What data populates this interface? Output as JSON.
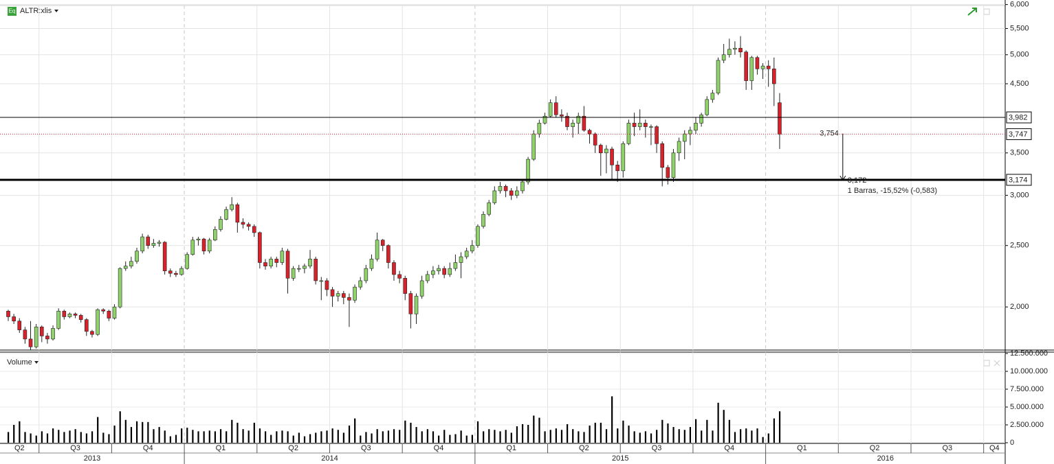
{
  "chart_data": [
    {
      "type": "candlestick",
      "title": "ALTR:xlis",
      "icon": "Eq",
      "log_scale": true,
      "grid": true,
      "up_color": "#8fd16a",
      "down_color": "#d8222b",
      "ylim": [
        1.71,
        6.1
      ],
      "yticks": [
        {
          "value": 2,
          "label": "2,000"
        },
        {
          "value": 2.5,
          "label": "2,500"
        },
        {
          "value": 3,
          "label": "3,000"
        },
        {
          "value": 3.5,
          "label": "3,500"
        },
        {
          "value": 4.5,
          "label": "4,500"
        },
        {
          "value": 5,
          "label": "5,000"
        },
        {
          "value": 5.5,
          "label": "5,500"
        },
        {
          "value": 6,
          "label": "6,000"
        }
      ],
      "open": [
        1.97,
        1.93,
        1.9,
        1.84,
        1.78,
        1.73,
        1.86,
        1.8,
        1.78,
        1.85,
        1.97,
        1.93,
        1.95,
        1.94,
        1.91,
        1.83,
        1.81,
        1.98,
        1.97,
        1.92,
        2.0,
        2.3,
        2.32,
        2.36,
        2.45,
        2.58,
        2.5,
        2.52,
        2.53,
        2.28,
        2.26,
        2.25,
        2.3,
        2.42,
        2.55,
        2.56,
        2.45,
        2.55,
        2.65,
        2.75,
        2.85,
        2.9,
        2.72,
        2.7,
        2.68,
        2.62,
        2.35,
        2.32,
        2.38,
        2.35,
        2.45,
        2.22,
        2.3,
        2.3,
        2.32,
        2.38,
        2.2,
        2.2,
        2.13,
        2.08,
        2.1,
        2.07,
        2.05,
        2.15,
        2.2,
        2.3,
        2.38,
        2.55,
        2.5,
        2.35,
        2.25,
        2.22,
        2.1,
        1.95,
        2.08,
        2.2,
        2.25,
        2.28,
        2.3,
        2.25,
        2.3,
        2.35,
        2.4,
        2.45,
        2.5,
        2.68,
        2.8,
        2.92,
        3.05,
        3.1,
        3.05,
        3.0,
        3.05,
        3.15,
        3.42,
        3.75,
        3.9,
        4.0,
        4.2,
        4.02,
        4.0,
        3.85,
        3.9,
        4.0,
        3.8,
        3.75,
        3.6,
        3.5,
        3.55,
        3.35,
        3.28,
        3.62,
        3.9,
        3.85,
        3.9,
        3.85,
        3.85,
        3.62,
        3.32,
        3.2,
        3.5,
        3.65,
        3.75,
        3.8,
        3.9,
        4.02,
        4.25,
        4.35,
        4.9,
        5.0,
        5.1,
        5.12,
        5.05,
        4.55,
        4.95,
        4.75,
        4.8,
        4.75,
        4.2
      ],
      "high": [
        1.98,
        1.95,
        1.92,
        1.86,
        1.9,
        1.88,
        1.87,
        1.82,
        1.87,
        1.99,
        1.98,
        1.96,
        1.96,
        1.95,
        1.92,
        1.84,
        1.99,
        1.99,
        1.98,
        2.02,
        2.31,
        2.36,
        2.4,
        2.48,
        2.61,
        2.6,
        2.56,
        2.55,
        2.54,
        2.3,
        2.28,
        2.32,
        2.44,
        2.58,
        2.58,
        2.57,
        2.57,
        2.68,
        2.78,
        2.88,
        2.98,
        2.92,
        2.76,
        2.72,
        2.7,
        2.63,
        2.38,
        2.4,
        2.4,
        2.48,
        2.47,
        2.32,
        2.33,
        2.34,
        2.46,
        2.4,
        2.23,
        2.22,
        2.15,
        2.12,
        2.12,
        2.1,
        2.17,
        2.23,
        2.33,
        2.42,
        2.62,
        2.56,
        2.51,
        2.37,
        2.28,
        2.24,
        2.12,
        2.1,
        2.24,
        2.28,
        2.32,
        2.33,
        2.32,
        2.35,
        2.42,
        2.44,
        2.48,
        2.55,
        2.7,
        2.83,
        2.95,
        3.1,
        3.15,
        3.12,
        3.08,
        3.1,
        3.18,
        3.45,
        3.8,
        3.95,
        4.05,
        4.25,
        4.3,
        4.1,
        4.05,
        3.95,
        4.05,
        4.15,
        3.82,
        3.77,
        3.62,
        3.6,
        3.58,
        3.4,
        3.65,
        3.95,
        4.05,
        4.1,
        3.95,
        3.88,
        3.87,
        3.65,
        3.35,
        3.55,
        3.7,
        3.8,
        3.85,
        3.98,
        4.05,
        4.3,
        4.4,
        4.95,
        5.2,
        5.3,
        5.25,
        5.35,
        5.08,
        4.98,
        4.98,
        4.85,
        4.9,
        4.95,
        4.35
      ],
      "low": [
        1.9,
        1.88,
        1.82,
        1.75,
        1.71,
        1.72,
        1.76,
        1.75,
        1.77,
        1.84,
        1.91,
        1.92,
        1.92,
        1.89,
        1.8,
        1.79,
        1.8,
        1.95,
        1.9,
        1.91,
        1.99,
        2.28,
        2.3,
        2.34,
        2.43,
        2.47,
        2.48,
        2.49,
        2.25,
        2.23,
        2.23,
        2.24,
        2.29,
        2.41,
        2.5,
        2.42,
        2.43,
        2.54,
        2.63,
        2.74,
        2.83,
        2.62,
        2.66,
        2.64,
        2.58,
        2.3,
        2.29,
        2.3,
        2.31,
        2.33,
        2.1,
        2.2,
        2.27,
        2.26,
        2.3,
        2.17,
        2.05,
        2.08,
        2.0,
        2.04,
        2.02,
        1.86,
        2.03,
        2.13,
        2.18,
        2.28,
        2.36,
        2.45,
        2.3,
        2.2,
        2.18,
        2.05,
        1.85,
        1.88,
        2.06,
        2.18,
        2.22,
        2.25,
        2.22,
        2.23,
        2.28,
        2.22,
        2.38,
        2.43,
        2.48,
        2.66,
        2.78,
        2.9,
        3.02,
        2.98,
        2.95,
        2.97,
        3.02,
        3.12,
        3.4,
        3.7,
        3.88,
        3.98,
        3.98,
        3.92,
        3.8,
        3.7,
        3.75,
        3.78,
        3.62,
        3.5,
        3.22,
        3.25,
        3.18,
        3.15,
        3.2,
        3.6,
        3.72,
        3.8,
        3.7,
        3.6,
        3.5,
        3.1,
        3.12,
        3.15,
        3.4,
        3.42,
        3.6,
        3.75,
        3.85,
        4.0,
        4.2,
        4.32,
        4.85,
        4.95,
        5.0,
        4.95,
        4.4,
        4.4,
        4.65,
        4.58,
        4.45,
        4.15,
        3.55
      ],
      "close": [
        1.93,
        1.9,
        1.84,
        1.78,
        1.73,
        1.86,
        1.8,
        1.78,
        1.85,
        1.97,
        1.93,
        1.95,
        1.94,
        1.91,
        1.83,
        1.81,
        1.98,
        1.97,
        1.92,
        2.0,
        2.3,
        2.32,
        2.36,
        2.45,
        2.58,
        2.5,
        2.52,
        2.53,
        2.28,
        2.26,
        2.25,
        2.3,
        2.42,
        2.55,
        2.56,
        2.45,
        2.55,
        2.65,
        2.75,
        2.85,
        2.9,
        2.72,
        2.7,
        2.68,
        2.62,
        2.35,
        2.32,
        2.38,
        2.35,
        2.45,
        2.22,
        2.3,
        2.3,
        2.32,
        2.38,
        2.2,
        2.2,
        2.13,
        2.08,
        2.1,
        2.07,
        2.05,
        2.15,
        2.2,
        2.3,
        2.38,
        2.55,
        2.5,
        2.35,
        2.25,
        2.22,
        2.1,
        1.95,
        2.08,
        2.2,
        2.25,
        2.28,
        2.3,
        2.25,
        2.3,
        2.35,
        2.4,
        2.45,
        2.5,
        2.68,
        2.8,
        2.92,
        3.05,
        3.1,
        3.05,
        3.0,
        3.05,
        3.15,
        3.42,
        3.75,
        3.9,
        4.0,
        4.2,
        4.02,
        4.0,
        3.85,
        3.9,
        4.0,
        3.8,
        3.75,
        3.6,
        3.5,
        3.55,
        3.35,
        3.28,
        3.62,
        3.9,
        3.85,
        3.9,
        3.85,
        3.85,
        3.62,
        3.32,
        3.2,
        3.5,
        3.65,
        3.75,
        3.8,
        3.9,
        4.02,
        4.25,
        4.35,
        4.9,
        5.0,
        5.1,
        5.12,
        5.05,
        4.55,
        4.95,
        4.75,
        4.8,
        4.75,
        4.5,
        3.747
      ],
      "levels": [
        {
          "value": 3.982,
          "label": "3,982",
          "color": "#000000",
          "style": "solid"
        },
        {
          "value": 3.747,
          "label": "3,747",
          "color": "#d8222b",
          "style": "dotted"
        },
        {
          "value": 3.174,
          "label": "3,174",
          "color": "#000000",
          "style": "bold"
        }
      ],
      "measure": {
        "start": 3.754,
        "start_label": "3,754",
        "end": 3.172,
        "end_label": "3,172",
        "text": "1 Barras, -15,52% (-0,583)"
      }
    },
    {
      "type": "bar",
      "title": "Volume",
      "color": "#000000",
      "ylim": [
        0,
        12500000
      ],
      "yticks": [
        0,
        {
          "value": 2500000,
          "label": "2.500.000"
        },
        {
          "value": 5000000,
          "label": "5.000.000"
        },
        {
          "value": 7500000,
          "label": "7.500.000"
        },
        {
          "value": 10000000,
          "label": "10.000.000"
        },
        {
          "value": 12500000,
          "label": "12.500.000"
        }
      ],
      "values": [
        1500000,
        2500000,
        3000000,
        1500000,
        1300000,
        1000000,
        1600000,
        1300000,
        2000000,
        1800000,
        1500000,
        1700000,
        1900000,
        1500000,
        1300000,
        1600000,
        3600000,
        1400000,
        1200000,
        2400000,
        4400000,
        3200000,
        2200000,
        3000000,
        2900000,
        2900000,
        1900000,
        2200000,
        1700000,
        900000,
        1100000,
        2000000,
        2100000,
        1800000,
        1600000,
        1600000,
        1700000,
        1600000,
        1900000,
        1600000,
        3200000,
        2800000,
        1900000,
        1700000,
        2800000,
        2000000,
        1600000,
        1100000,
        1600000,
        1700000,
        1600000,
        1000000,
        1400000,
        900000,
        1200000,
        1400000,
        1600000,
        1700000,
        2000000,
        1800000,
        1400000,
        2400000,
        3400000,
        1000000,
        1500000,
        1300000,
        1900000,
        1600000,
        1700000,
        1900000,
        1800000,
        3100000,
        2800000,
        2200000,
        1600000,
        1900000,
        1600000,
        1000000,
        1800000,
        1100000,
        1200000,
        1700000,
        1000000,
        1100000,
        3000000,
        1600000,
        1900000,
        1800000,
        1600000,
        1800000,
        1400000,
        2300000,
        2600000,
        2500000,
        3800000,
        3500000,
        1600000,
        1800000,
        2000000,
        1800000,
        2600000,
        1900000,
        1600000,
        1500000,
        2400000,
        2800000,
        2800000,
        1900000,
        6500000,
        2000000,
        3100000,
        2400000,
        1600000,
        1400000,
        1600000,
        1300000,
        1800000,
        3200000,
        2700000,
        2200000,
        1900000,
        1800000,
        2200000,
        3300000,
        1700000,
        3200000,
        1700000,
        5600000,
        4600000,
        3200000,
        1500000,
        1900000,
        2000000,
        1700000,
        2000000,
        800000,
        1300000,
        3400000,
        4400000
      ],
      "quarters": [
        "Q2",
        "Q3",
        "Q4",
        "Q1",
        "Q2",
        "Q3",
        "Q4",
        "Q1",
        "Q2",
        "Q3",
        "Q4",
        "Q1",
        "Q2",
        "Q3",
        "Q4"
      ],
      "years": [
        "2013",
        "2014",
        "2015",
        "2016"
      ]
    }
  ]
}
